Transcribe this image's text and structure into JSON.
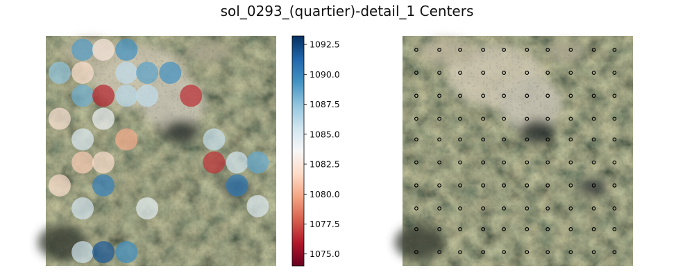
{
  "chart_data": [
    {
      "type": "scatter",
      "panel": "left",
      "title": "sol_0293_(quartier)-detail_1 Centers",
      "background": "rock texture image (grey-green stone with light patches)",
      "marker": "large semi-transparent filled circles colored by value",
      "colormap": "RdBu",
      "color_scale": {
        "min": 1074.0,
        "max": 1093.2
      },
      "colorbar_ticks": [
        "1075.0",
        "1077.5",
        "1080.0",
        "1082.5",
        "1085.0",
        "1087.5",
        "1090.0",
        "1092.5"
      ],
      "points": [
        {
          "x": 0.16,
          "y": 0.06,
          "value": 1089.0
        },
        {
          "x": 0.25,
          "y": 0.06,
          "value": 1082.6
        },
        {
          "x": 0.35,
          "y": 0.06,
          "value": 1089.4
        },
        {
          "x": 0.06,
          "y": 0.16,
          "value": 1087.4
        },
        {
          "x": 0.16,
          "y": 0.16,
          "value": 1082.0
        },
        {
          "x": 0.35,
          "y": 0.16,
          "value": 1086.0
        },
        {
          "x": 0.44,
          "y": 0.16,
          "value": 1088.8
        },
        {
          "x": 0.54,
          "y": 0.16,
          "value": 1089.4
        },
        {
          "x": 0.16,
          "y": 0.26,
          "value": 1088.3
        },
        {
          "x": 0.25,
          "y": 0.26,
          "value": 1076.2
        },
        {
          "x": 0.35,
          "y": 0.26,
          "value": 1086.3
        },
        {
          "x": 0.44,
          "y": 0.26,
          "value": 1086.0
        },
        {
          "x": 0.63,
          "y": 0.26,
          "value": 1076.5
        },
        {
          "x": 0.06,
          "y": 0.36,
          "value": 1082.2
        },
        {
          "x": 0.25,
          "y": 0.36,
          "value": 1084.0
        },
        {
          "x": 0.16,
          "y": 0.45,
          "value": 1085.0
        },
        {
          "x": 0.35,
          "y": 0.45,
          "value": 1080.0
        },
        {
          "x": 0.73,
          "y": 0.45,
          "value": 1085.8
        },
        {
          "x": 0.16,
          "y": 0.55,
          "value": 1081.2
        },
        {
          "x": 0.25,
          "y": 0.55,
          "value": 1082.0
        },
        {
          "x": 0.73,
          "y": 0.55,
          "value": 1076.6
        },
        {
          "x": 0.83,
          "y": 0.55,
          "value": 1085.5
        },
        {
          "x": 0.92,
          "y": 0.55,
          "value": 1088.6
        },
        {
          "x": 0.06,
          "y": 0.65,
          "value": 1082.0
        },
        {
          "x": 0.25,
          "y": 0.65,
          "value": 1090.2
        },
        {
          "x": 0.83,
          "y": 0.65,
          "value": 1090.4
        },
        {
          "x": 0.16,
          "y": 0.75,
          "value": 1085.3
        },
        {
          "x": 0.44,
          "y": 0.75,
          "value": 1084.4
        },
        {
          "x": 0.92,
          "y": 0.74,
          "value": 1084.8
        },
        {
          "x": 0.16,
          "y": 0.94,
          "value": 1085.5
        },
        {
          "x": 0.25,
          "y": 0.94,
          "value": 1091.8
        },
        {
          "x": 0.35,
          "y": 0.94,
          "value": 1089.7
        }
      ]
    },
    {
      "type": "scatter",
      "panel": "right",
      "background": "same rock texture image",
      "marker": "small black hollow circles",
      "grid_columns": [
        0.06,
        0.16,
        0.25,
        0.35,
        0.44,
        0.54,
        0.63,
        0.73,
        0.83,
        0.92
      ],
      "grid_rows": [
        0.06,
        0.16,
        0.26,
        0.36,
        0.45,
        0.55,
        0.65,
        0.75,
        0.84,
        0.94
      ]
    }
  ]
}
